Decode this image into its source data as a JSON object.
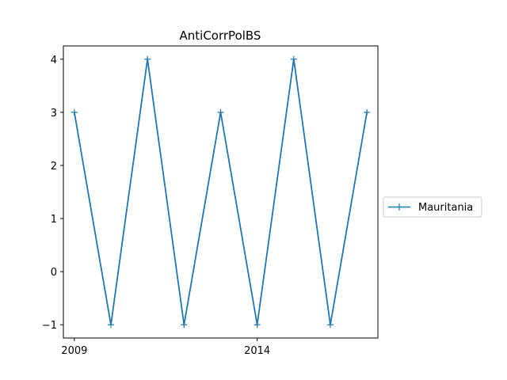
{
  "chart_data": {
    "type": "line",
    "title": "AntiCorrPolBS",
    "xlabel": "",
    "ylabel": "",
    "x": [
      2009,
      2010,
      2011,
      2012,
      2013,
      2014,
      2015,
      2016,
      2017
    ],
    "xticks": [
      2009,
      2014
    ],
    "xlim": [
      2008.7,
      2017.3
    ],
    "yticks": [
      -1,
      0,
      1,
      2,
      3,
      4
    ],
    "ylim": [
      -1.25,
      4.25
    ],
    "series": [
      {
        "name": "Mauritania",
        "values": [
          3,
          -1,
          4,
          -1,
          3,
          -1,
          4,
          -1,
          3
        ],
        "color": "#1f77b4",
        "marker": "+"
      }
    ],
    "legend_position": "right-center",
    "grid": false
  }
}
